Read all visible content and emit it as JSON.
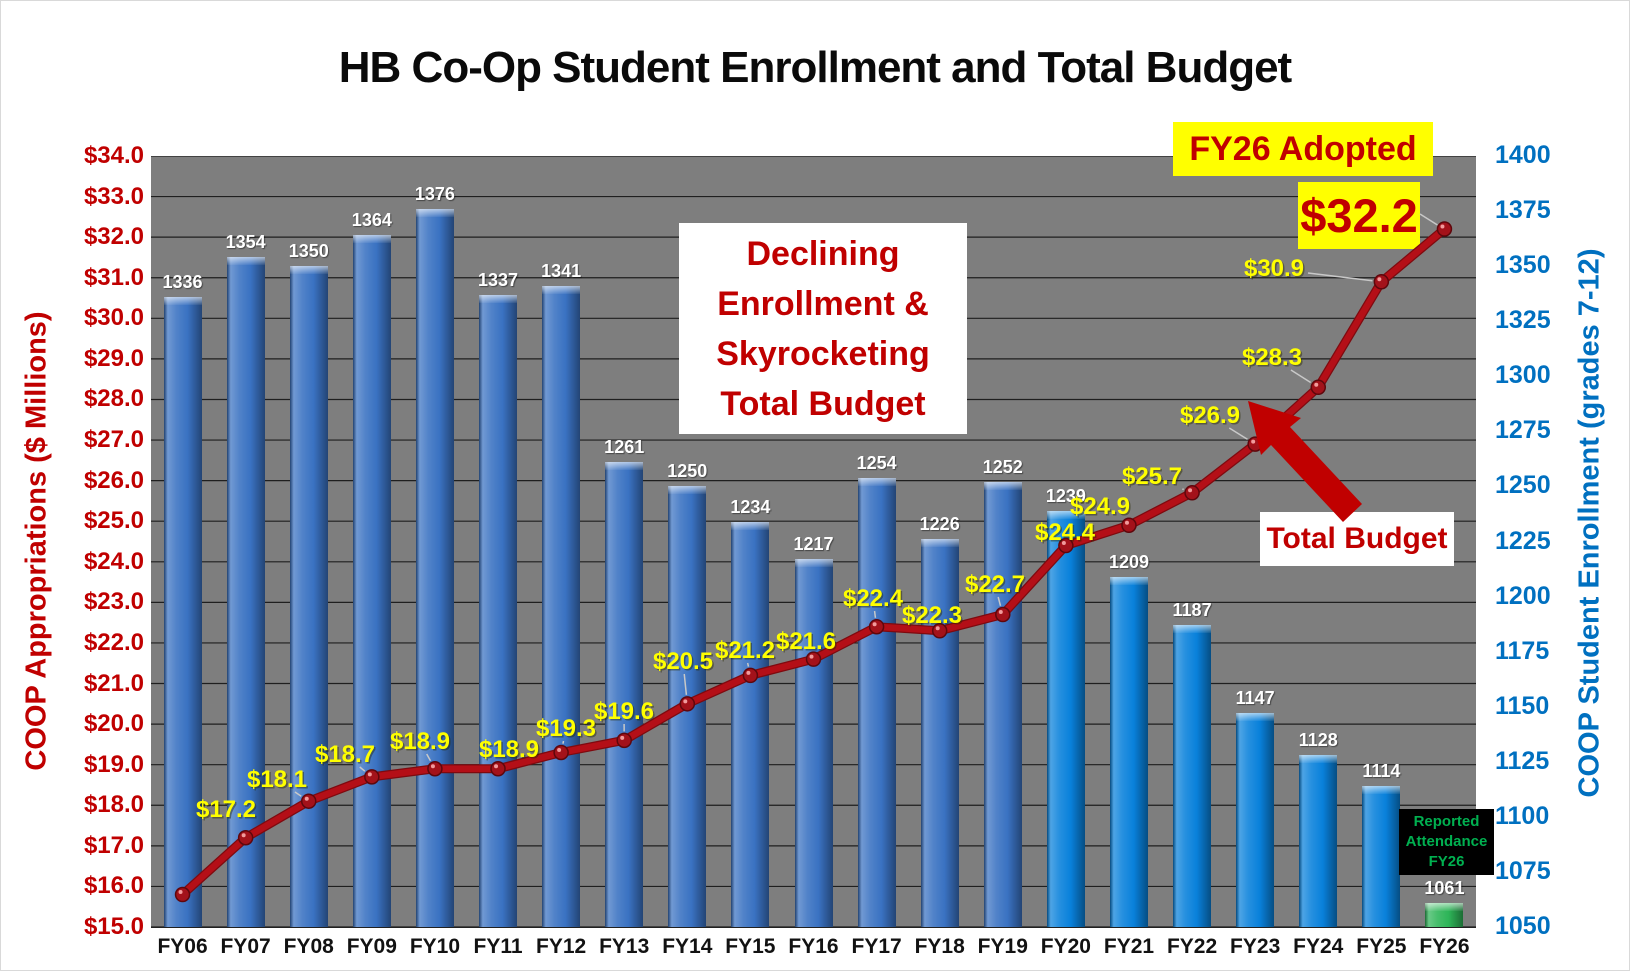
{
  "title": "HB Co-Op Student Enrollment and Total Budget",
  "chart_data": {
    "type": "combo_bar_line",
    "categories": [
      "FY06",
      "FY07",
      "FY08",
      "FY09",
      "FY10",
      "FY11",
      "FY12",
      "FY13",
      "FY14",
      "FY15",
      "FY16",
      "FY17",
      "FY18",
      "FY19",
      "FY20",
      "FY21",
      "FY22",
      "FY23",
      "FY24",
      "FY25",
      "FY26"
    ],
    "series": [
      {
        "name": "COOP Student Enrollment",
        "type": "bar",
        "axis": "right",
        "values": [
          1336,
          1354,
          1350,
          1364,
          1376,
          1337,
          1341,
          1261,
          1250,
          1234,
          1217,
          1254,
          1226,
          1252,
          1239,
          1209,
          1187,
          1147,
          1128,
          1114,
          1061
        ]
      },
      {
        "name": "Total Budget",
        "type": "line",
        "axis": "left",
        "values": [
          15.8,
          17.2,
          18.1,
          18.7,
          18.9,
          18.9,
          19.3,
          19.6,
          20.5,
          21.2,
          21.6,
          22.4,
          22.3,
          22.7,
          24.4,
          24.9,
          25.7,
          26.9,
          28.3,
          30.9,
          32.2
        ],
        "point_labels": [
          "",
          "$17.2",
          "$18.1",
          "$18.7",
          "$18.9",
          "$18.9",
          "$19.3",
          "$19.6",
          "$20.5",
          "$21.2",
          "$21.6",
          "$22.4",
          "$22.3",
          "$22.7",
          "$24.4",
          "$24.9",
          "$25.7",
          "$26.9",
          "$28.3",
          "$30.9",
          ""
        ]
      }
    ],
    "left_axis": {
      "title": "COOP Appropriations ($ Millions)",
      "min": 15,
      "max": 34,
      "step": 1,
      "ticks": [
        "$34.0",
        "$33.0",
        "$32.0",
        "$31.0",
        "$30.0",
        "$29.0",
        "$28.0",
        "$27.0",
        "$26.0",
        "$25.0",
        "$24.0",
        "$23.0",
        "$22.0",
        "$21.0",
        "$20.0",
        "$19.0",
        "$18.0",
        "$17.0",
        "$16.0",
        "$15.0"
      ]
    },
    "right_axis": {
      "title": "COOP Student Enrollment (grades 7-12)",
      "min": 1050,
      "max": 1400,
      "step": 25,
      "ticks": [
        "1400",
        "1375",
        "1350",
        "1325",
        "1300",
        "1275",
        "1250",
        "1225",
        "1200",
        "1175",
        "1150",
        "1125",
        "1100",
        "1075",
        "1050"
      ]
    },
    "grid": true,
    "legend": "none",
    "bar_groups": {
      "steel_blue_index_range": [
        0,
        13
      ],
      "bright_blue_index_range": [
        14,
        19
      ],
      "green_index": 20
    }
  },
  "annotations": {
    "message_lines": [
      "Declining",
      "Enrollment &",
      "Skyrocketing",
      "Total Budget"
    ],
    "fy26_adopted": "FY26 Adopted",
    "fy26_value": "$32.2",
    "total_budget": "Total Budget",
    "reported_attendance_lines": [
      "Reported",
      "Attendance",
      "FY26"
    ]
  },
  "colors": {
    "plot_background": "#7e7e7e",
    "gridline": "#1f1f1f",
    "bar_steel_blue": "#3a72c2",
    "bar_bright_blue": "#0981db",
    "bar_green": "#2eb558",
    "line_red": "#b40f17",
    "line_red_dark": "#7e0a0f",
    "marker_red": "#a3121a",
    "point_label_yellow": "#ffff00",
    "bar_label_white": "#ffffff",
    "left_axis_red": "#c00000",
    "right_axis_blue": "#0070c0",
    "annotation_red": "#c00000",
    "highlight_yellow": "#ffff00",
    "attendance_green": "#00b050",
    "attendance_bg": "#000000",
    "leader_gray": "#c8c8c8",
    "arrow_red": "#c00000"
  }
}
